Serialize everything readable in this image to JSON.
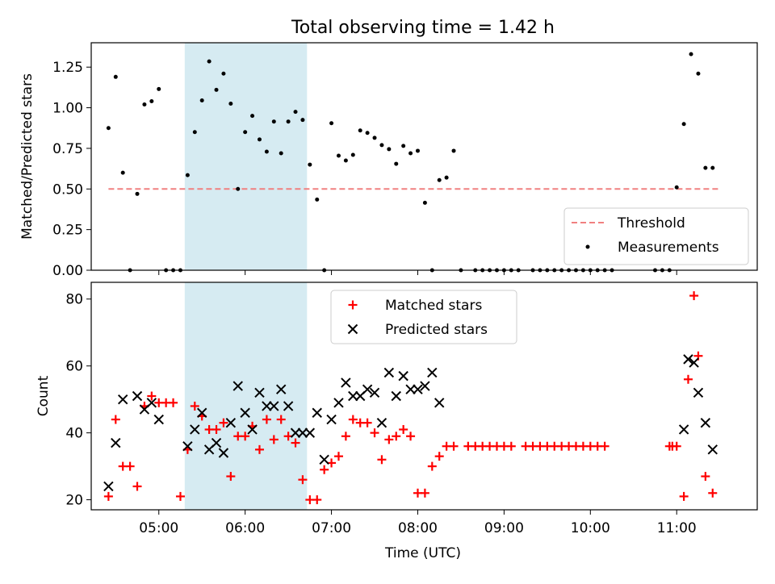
{
  "title": "Total observing time = 1.42 h",
  "chart_data": [
    {
      "type": "scatter",
      "xlabel": "",
      "ylabel": "Matched/Predicted stars",
      "xlim": [
        "04:13",
        "11:56"
      ],
      "ylim": [
        0,
        1.4
      ],
      "yticks": [
        0,
        0.25,
        0.5,
        0.75,
        1.0,
        1.25
      ],
      "ytick_labels": [
        "0.00",
        "0.25",
        "0.50",
        "0.75",
        "1.00",
        "1.25"
      ],
      "grid": false,
      "legend_position": "lower-right",
      "highlight_span": [
        "05:18",
        "06:43"
      ],
      "highlight_color": "#add8e6",
      "threshold": {
        "name": "Threshold",
        "value": 0.5,
        "x_range": [
          "04:25",
          "11:30"
        ],
        "color": "#f08080"
      },
      "measurements": {
        "name": "Measurements",
        "color": "#000000",
        "points": [
          [
            "04:25",
            0.875
          ],
          [
            "04:30",
            1.19
          ],
          [
            "04:35",
            0.6
          ],
          [
            "04:40",
            0.0
          ],
          [
            "04:45",
            0.47
          ],
          [
            "04:50",
            1.02
          ],
          [
            "04:55",
            1.04
          ],
          [
            "05:00",
            1.115
          ],
          [
            "05:05",
            0.0
          ],
          [
            "05:10",
            0.0
          ],
          [
            "05:15",
            0.0
          ],
          [
            "05:20",
            0.585
          ],
          [
            "05:25",
            0.85
          ],
          [
            "05:30",
            1.045
          ],
          [
            "05:35",
            1.285
          ],
          [
            "05:40",
            1.11
          ],
          [
            "05:45",
            1.21
          ],
          [
            "05:50",
            1.025
          ],
          [
            "05:55",
            0.5
          ],
          [
            "06:00",
            0.85
          ],
          [
            "06:05",
            0.95
          ],
          [
            "06:10",
            0.805
          ],
          [
            "06:15",
            0.73
          ],
          [
            "06:20",
            0.915
          ],
          [
            "06:25",
            0.72
          ],
          [
            "06:30",
            0.915
          ],
          [
            "06:35",
            0.975
          ],
          [
            "06:40",
            0.925
          ],
          [
            "06:45",
            0.65
          ],
          [
            "06:50",
            0.435
          ],
          [
            "06:55",
            0.0
          ],
          [
            "07:00",
            0.905
          ],
          [
            "07:05",
            0.705
          ],
          [
            "07:10",
            0.675
          ],
          [
            "07:15",
            0.71
          ],
          [
            "07:20",
            0.86
          ],
          [
            "07:25",
            0.845
          ],
          [
            "07:30",
            0.815
          ],
          [
            "07:35",
            0.77
          ],
          [
            "07:40",
            0.745
          ],
          [
            "07:45",
            0.655
          ],
          [
            "07:50",
            0.765
          ],
          [
            "07:55",
            0.72
          ],
          [
            "08:00",
            0.735
          ],
          [
            "08:05",
            0.415
          ],
          [
            "08:10",
            0.0
          ],
          [
            "08:15",
            0.555
          ],
          [
            "08:20",
            0.57
          ],
          [
            "08:25",
            0.735
          ],
          [
            "08:30",
            0.0
          ],
          [
            "08:40",
            0.0
          ],
          [
            "08:45",
            0.0
          ],
          [
            "08:50",
            0.0
          ],
          [
            "08:55",
            0.0
          ],
          [
            "09:00",
            0.0
          ],
          [
            "09:05",
            0.0
          ],
          [
            "09:10",
            0.0
          ],
          [
            "09:20",
            0.0
          ],
          [
            "09:25",
            0.0
          ],
          [
            "09:30",
            0.0
          ],
          [
            "09:35",
            0.0
          ],
          [
            "09:40",
            0.0
          ],
          [
            "09:45",
            0.0
          ],
          [
            "09:50",
            0.0
          ],
          [
            "09:55",
            0.0
          ],
          [
            "10:00",
            0.0
          ],
          [
            "10:05",
            0.0
          ],
          [
            "10:10",
            0.0
          ],
          [
            "10:15",
            0.0
          ],
          [
            "10:45",
            0.0
          ],
          [
            "10:50",
            0.0
          ],
          [
            "10:55",
            0.0
          ],
          [
            "11:00",
            0.51
          ],
          [
            "11:05",
            0.9
          ],
          [
            "11:10",
            1.33
          ],
          [
            "11:15",
            1.21
          ],
          [
            "11:20",
            0.63
          ],
          [
            "11:25",
            0.63
          ]
        ]
      }
    },
    {
      "type": "scatter",
      "xlabel": "Time (UTC)",
      "ylabel": "Count",
      "xlim": [
        "04:13",
        "11:56"
      ],
      "ylim": [
        17,
        85
      ],
      "yticks": [
        20,
        40,
        60,
        80
      ],
      "xticks": [
        "05:00",
        "06:00",
        "07:00",
        "08:00",
        "09:00",
        "10:00",
        "11:00"
      ],
      "grid": false,
      "legend_position": "top-center",
      "highlight_span": [
        "05:18",
        "06:43"
      ],
      "highlight_color": "#add8e6",
      "series": [
        {
          "name": "Matched stars",
          "marker": "plus",
          "color": "#ff0000",
          "points": [
            [
              "04:25",
              21
            ],
            [
              "04:30",
              44
            ],
            [
              "04:35",
              30
            ],
            [
              "04:40",
              30
            ],
            [
              "04:45",
              24
            ],
            [
              "04:50",
              48
            ],
            [
              "04:55",
              51
            ],
            [
              "05:00",
              49
            ],
            [
              "05:05",
              49
            ],
            [
              "05:10",
              49
            ],
            [
              "05:15",
              21
            ],
            [
              "05:20",
              35
            ],
            [
              "05:25",
              48
            ],
            [
              "05:30",
              45
            ],
            [
              "05:35",
              41
            ],
            [
              "05:40",
              41
            ],
            [
              "05:45",
              43
            ],
            [
              "05:50",
              27
            ],
            [
              "05:55",
              39
            ],
            [
              "06:00",
              39
            ],
            [
              "06:05",
              42
            ],
            [
              "06:10",
              35
            ],
            [
              "06:15",
              44
            ],
            [
              "06:20",
              38
            ],
            [
              "06:25",
              44
            ],
            [
              "06:30",
              39
            ],
            [
              "06:35",
              37
            ],
            [
              "06:40",
              26
            ],
            [
              "06:45",
              20
            ],
            [
              "06:50",
              20
            ],
            [
              "06:55",
              29
            ],
            [
              "07:00",
              31
            ],
            [
              "07:05",
              33
            ],
            [
              "07:10",
              39
            ],
            [
              "07:15",
              44
            ],
            [
              "07:20",
              43
            ],
            [
              "07:25",
              43
            ],
            [
              "07:30",
              40
            ],
            [
              "07:35",
              32
            ],
            [
              "07:40",
              38
            ],
            [
              "07:45",
              39
            ],
            [
              "07:50",
              41
            ],
            [
              "07:55",
              39
            ],
            [
              "08:00",
              22
            ],
            [
              "08:05",
              22
            ],
            [
              "08:10",
              30
            ],
            [
              "08:15",
              33
            ],
            [
              "08:20",
              36
            ],
            [
              "08:25",
              36
            ],
            [
              "08:35",
              36
            ],
            [
              "08:40",
              36
            ],
            [
              "08:45",
              36
            ],
            [
              "08:50",
              36
            ],
            [
              "08:55",
              36
            ],
            [
              "09:00",
              36
            ],
            [
              "09:05",
              36
            ],
            [
              "09:15",
              36
            ],
            [
              "09:20",
              36
            ],
            [
              "09:25",
              36
            ],
            [
              "09:30",
              36
            ],
            [
              "09:35",
              36
            ],
            [
              "09:40",
              36
            ],
            [
              "09:45",
              36
            ],
            [
              "09:50",
              36
            ],
            [
              "09:55",
              36
            ],
            [
              "10:00",
              36
            ],
            [
              "10:05",
              36
            ],
            [
              "10:10",
              36
            ],
            [
              "10:55",
              36
            ],
            [
              "10:57",
              36
            ],
            [
              "11:00",
              36
            ],
            [
              "11:05",
              21
            ],
            [
              "11:08",
              56
            ],
            [
              "11:12",
              81
            ],
            [
              "11:15",
              63
            ],
            [
              "11:20",
              27
            ],
            [
              "11:25",
              22
            ]
          ]
        },
        {
          "name": "Predicted stars",
          "marker": "x",
          "color": "#000000",
          "points": [
            [
              "04:25",
              24
            ],
            [
              "04:30",
              37
            ],
            [
              "04:35",
              50
            ],
            [
              "04:45",
              51
            ],
            [
              "04:50",
              47
            ],
            [
              "04:55",
              49
            ],
            [
              "05:00",
              44
            ],
            [
              "05:20",
              36
            ],
            [
              "05:25",
              41
            ],
            [
              "05:30",
              46
            ],
            [
              "05:35",
              35
            ],
            [
              "05:40",
              37
            ],
            [
              "05:45",
              34
            ],
            [
              "05:50",
              43
            ],
            [
              "05:55",
              54
            ],
            [
              "06:00",
              46
            ],
            [
              "06:05",
              41
            ],
            [
              "06:10",
              52
            ],
            [
              "06:15",
              48
            ],
            [
              "06:20",
              48
            ],
            [
              "06:25",
              53
            ],
            [
              "06:30",
              48
            ],
            [
              "06:35",
              40
            ],
            [
              "06:40",
              40
            ],
            [
              "06:45",
              40
            ],
            [
              "06:50",
              46
            ],
            [
              "06:55",
              32
            ],
            [
              "07:00",
              44
            ],
            [
              "07:05",
              49
            ],
            [
              "07:10",
              55
            ],
            [
              "07:15",
              51
            ],
            [
              "07:20",
              51
            ],
            [
              "07:25",
              53
            ],
            [
              "07:30",
              52
            ],
            [
              "07:35",
              43
            ],
            [
              "07:40",
              58
            ],
            [
              "07:45",
              51
            ],
            [
              "07:50",
              57
            ],
            [
              "07:55",
              53
            ],
            [
              "08:00",
              53
            ],
            [
              "08:05",
              54
            ],
            [
              "08:10",
              58
            ],
            [
              "08:15",
              49
            ],
            [
              "11:05",
              41
            ],
            [
              "11:08",
              62
            ],
            [
              "11:12",
              61
            ],
            [
              "11:15",
              52
            ],
            [
              "11:20",
              43
            ],
            [
              "11:25",
              35
            ]
          ]
        }
      ]
    }
  ]
}
